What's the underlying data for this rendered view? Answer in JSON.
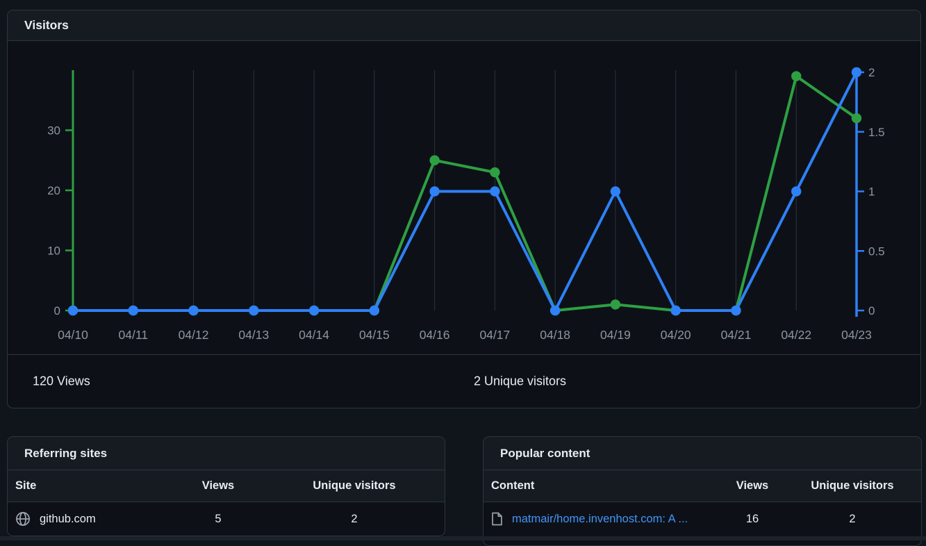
{
  "visitors_card": {
    "title": "Visitors",
    "summary": {
      "views_total": "120 Views",
      "unique_total": "2 Unique visitors"
    }
  },
  "chart_data": {
    "type": "line",
    "title": "Visitors",
    "x_labels": [
      "04/10",
      "04/11",
      "04/12",
      "04/13",
      "04/14",
      "04/15",
      "04/16",
      "04/17",
      "04/18",
      "04/19",
      "04/20",
      "04/21",
      "04/22",
      "04/23"
    ],
    "series": [
      {
        "name": "views",
        "axis": "left",
        "color": "#2ea043",
        "values": [
          0,
          0,
          0,
          0,
          0,
          0,
          25,
          23,
          0,
          1,
          0,
          0,
          39,
          32
        ]
      },
      {
        "name": "unique_visitors",
        "axis": "right",
        "color": "#2f81f7",
        "values": [
          0,
          0,
          0,
          0,
          0,
          0,
          1,
          1,
          0,
          1,
          0,
          0,
          1,
          2
        ]
      }
    ],
    "left_axis": {
      "tick_labels": [
        "0",
        "10",
        "20",
        "30"
      ],
      "tick_values": [
        0,
        10,
        20,
        30
      ],
      "range": [
        0,
        40
      ],
      "color": "#2ea043",
      "label_color": "#8d96a0"
    },
    "right_axis": {
      "tick_labels": [
        "0",
        "0.5",
        "1",
        "1.5",
        "2"
      ],
      "tick_values": [
        0,
        0.5,
        1,
        1.5,
        2
      ],
      "range": [
        0,
        2
      ],
      "color": "#2f81f7",
      "label_color": "#8d96a0"
    },
    "grid": true,
    "gridline_color": "#2d333b",
    "legend_position": "none"
  },
  "referring_sites": {
    "title": "Referring sites",
    "columns": [
      "Site",
      "Views",
      "Unique visitors"
    ],
    "rows": [
      {
        "icon": "globe-icon",
        "site": "github.com",
        "views": "5",
        "unique": "2"
      }
    ]
  },
  "popular_content": {
    "title": "Popular content",
    "columns": [
      "Content",
      "Views",
      "Unique visitors"
    ],
    "rows": [
      {
        "icon": "file-icon",
        "content": "matmair/home.invenhost.com: A ...",
        "views": "16",
        "unique": "2"
      }
    ]
  },
  "colors": {
    "page_bg": "#10141b",
    "card_bg": "#0d1117",
    "header_bg": "#161b22",
    "border": "#2f363d",
    "text": "#e6edf3",
    "muted_text": "#8d96a0",
    "views_green": "#2ea043",
    "unique_blue": "#2f81f7",
    "link_blue": "#4493f8"
  }
}
